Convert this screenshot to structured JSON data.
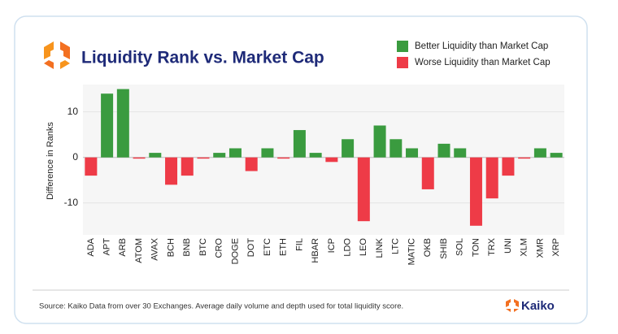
{
  "chart_data": {
    "type": "bar",
    "title": "Liquidity Rank vs. Market Cap",
    "y_label": "Difference in Ranks",
    "categories": [
      "ADA",
      "APT",
      "ARB",
      "ATOM",
      "AVAX",
      "BCH",
      "BNB",
      "BTC",
      "CRO",
      "DOGE",
      "DOT",
      "ETC",
      "ETH",
      "FIL",
      "HBAR",
      "ICP",
      "LDO",
      "LEO",
      "LINK",
      "LTC",
      "MATIC",
      "OKB",
      "SHIB",
      "SOL",
      "TON",
      "TRX",
      "UNI",
      "XLM",
      "XMR",
      "XRP"
    ],
    "series": [
      {
        "name": "Better Liquidity than Market Cap",
        "color": "#3a9b3f",
        "values": [
          null,
          14,
          15,
          null,
          1,
          null,
          null,
          null,
          1,
          2,
          null,
          2,
          null,
          6,
          1,
          null,
          4,
          null,
          7,
          4,
          2,
          null,
          3,
          2,
          null,
          null,
          null,
          null,
          2,
          1
        ]
      },
      {
        "name": "Worse Liquidity than Market Cap",
        "color": "#ee3b47",
        "values": [
          -4,
          null,
          null,
          0,
          null,
          -6,
          -4,
          0,
          null,
          null,
          -3,
          null,
          0,
          null,
          null,
          -1,
          null,
          -14,
          null,
          null,
          null,
          -7,
          null,
          null,
          -15,
          -9,
          -4,
          0,
          null,
          null
        ]
      }
    ],
    "ylim": [
      -17,
      16
    ],
    "yticks": [
      -10,
      0,
      10
    ],
    "grid": true,
    "source": "Source: Kaiko Data from over 30 Exchanges. Average daily volume and depth used for total liquidity score.",
    "brand": "Kaiko"
  }
}
